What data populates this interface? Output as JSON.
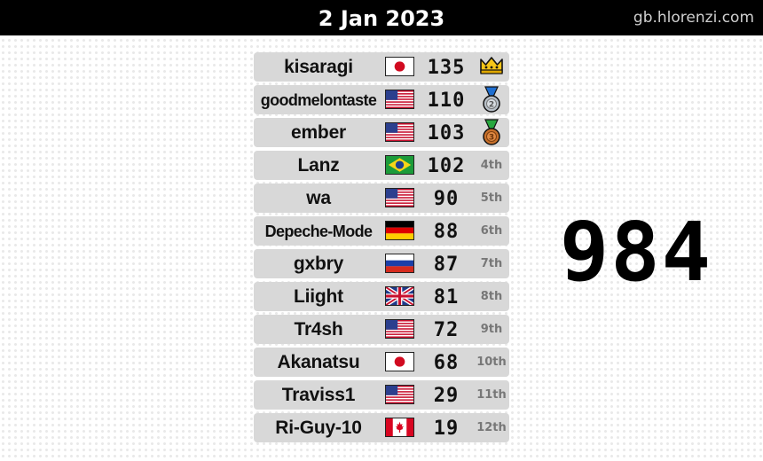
{
  "header": {
    "date": "2 Jan 2023",
    "site": "gb.hlorenzi.com"
  },
  "total": "984",
  "rows": [
    {
      "name": "kisaragi",
      "flag": "jp",
      "score": "135",
      "rank": "",
      "badge": "crown-icon"
    },
    {
      "name": "goodmelontaste",
      "flag": "us",
      "score": "110",
      "rank": "",
      "badge": "silver-medal-icon"
    },
    {
      "name": "ember",
      "flag": "us",
      "score": "103",
      "rank": "",
      "badge": "bronze-medal-icon"
    },
    {
      "name": "Lanz",
      "flag": "br",
      "score": "102",
      "rank": "4th",
      "badge": ""
    },
    {
      "name": "wa",
      "flag": "us",
      "score": "90",
      "rank": "5th",
      "badge": ""
    },
    {
      "name": "Depeche-Mode",
      "flag": "de",
      "score": "88",
      "rank": "6th",
      "badge": ""
    },
    {
      "name": "gxbry",
      "flag": "ru",
      "score": "87",
      "rank": "7th",
      "badge": ""
    },
    {
      "name": "Liight",
      "flag": "gb",
      "score": "81",
      "rank": "8th",
      "badge": ""
    },
    {
      "name": "Tr4sh",
      "flag": "us",
      "score": "72",
      "rank": "9th",
      "badge": ""
    },
    {
      "name": "Akanatsu",
      "flag": "jp",
      "score": "68",
      "rank": "10th",
      "badge": ""
    },
    {
      "name": "Traviss1",
      "flag": "us",
      "score": "29",
      "rank": "11th",
      "badge": ""
    },
    {
      "name": "Ri-Guy-10",
      "flag": "ca",
      "score": "19",
      "rank": "12th",
      "badge": ""
    }
  ],
  "colors": {
    "crown": "#f5c518",
    "silver": "#b8c0c8",
    "bronze": "#c8702a",
    "ribbon": "#27a73e"
  }
}
